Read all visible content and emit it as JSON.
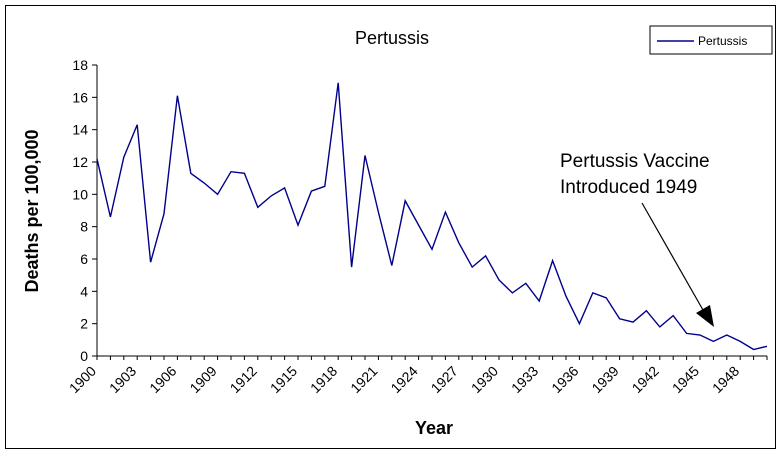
{
  "chart_data": {
    "type": "line",
    "title": "Pertussis",
    "xlabel": "Year",
    "ylabel": "Deaths per 100,000",
    "ylim": [
      0,
      18
    ],
    "yticks": [
      0,
      2,
      4,
      6,
      8,
      10,
      12,
      14,
      16,
      18
    ],
    "xlim": [
      1900,
      1950
    ],
    "xticks": [
      1900,
      1903,
      1906,
      1909,
      1912,
      1915,
      1918,
      1921,
      1924,
      1927,
      1930,
      1933,
      1936,
      1939,
      1942,
      1945,
      1948
    ],
    "grid": false,
    "legend": {
      "position": "top-right",
      "entries": [
        "Pertussis"
      ]
    },
    "series_color": "#00008B",
    "series": [
      {
        "name": "Pertussis",
        "x": [
          1900,
          1901,
          1902,
          1903,
          1904,
          1905,
          1906,
          1907,
          1908,
          1909,
          1910,
          1911,
          1912,
          1913,
          1914,
          1915,
          1916,
          1917,
          1918,
          1919,
          1920,
          1921,
          1922,
          1923,
          1924,
          1925,
          1926,
          1927,
          1928,
          1929,
          1930,
          1931,
          1932,
          1933,
          1934,
          1935,
          1936,
          1937,
          1938,
          1939,
          1940,
          1941,
          1942,
          1943,
          1944,
          1945,
          1946,
          1947,
          1948,
          1949,
          1950
        ],
        "values": [
          12.2,
          8.6,
          12.3,
          14.3,
          5.8,
          8.8,
          16.1,
          11.3,
          10.7,
          10.0,
          11.4,
          11.3,
          9.2,
          9.9,
          10.4,
          8.1,
          10.2,
          10.5,
          16.9,
          5.5,
          12.4,
          8.9,
          5.6,
          9.6,
          8.1,
          6.6,
          8.9,
          7.0,
          5.5,
          6.2,
          4.7,
          3.9,
          4.5,
          3.4,
          5.9,
          3.7,
          2.0,
          3.9,
          3.6,
          2.3,
          2.1,
          2.8,
          1.8,
          2.5,
          1.4,
          1.3,
          0.9,
          1.3,
          0.9,
          0.4,
          0.6
        ]
      }
    ],
    "annotation": {
      "lines": [
        "Pertussis Vaccine",
        "Introduced 1949"
      ],
      "target_x": 1949,
      "target_y": 2.3
    }
  }
}
